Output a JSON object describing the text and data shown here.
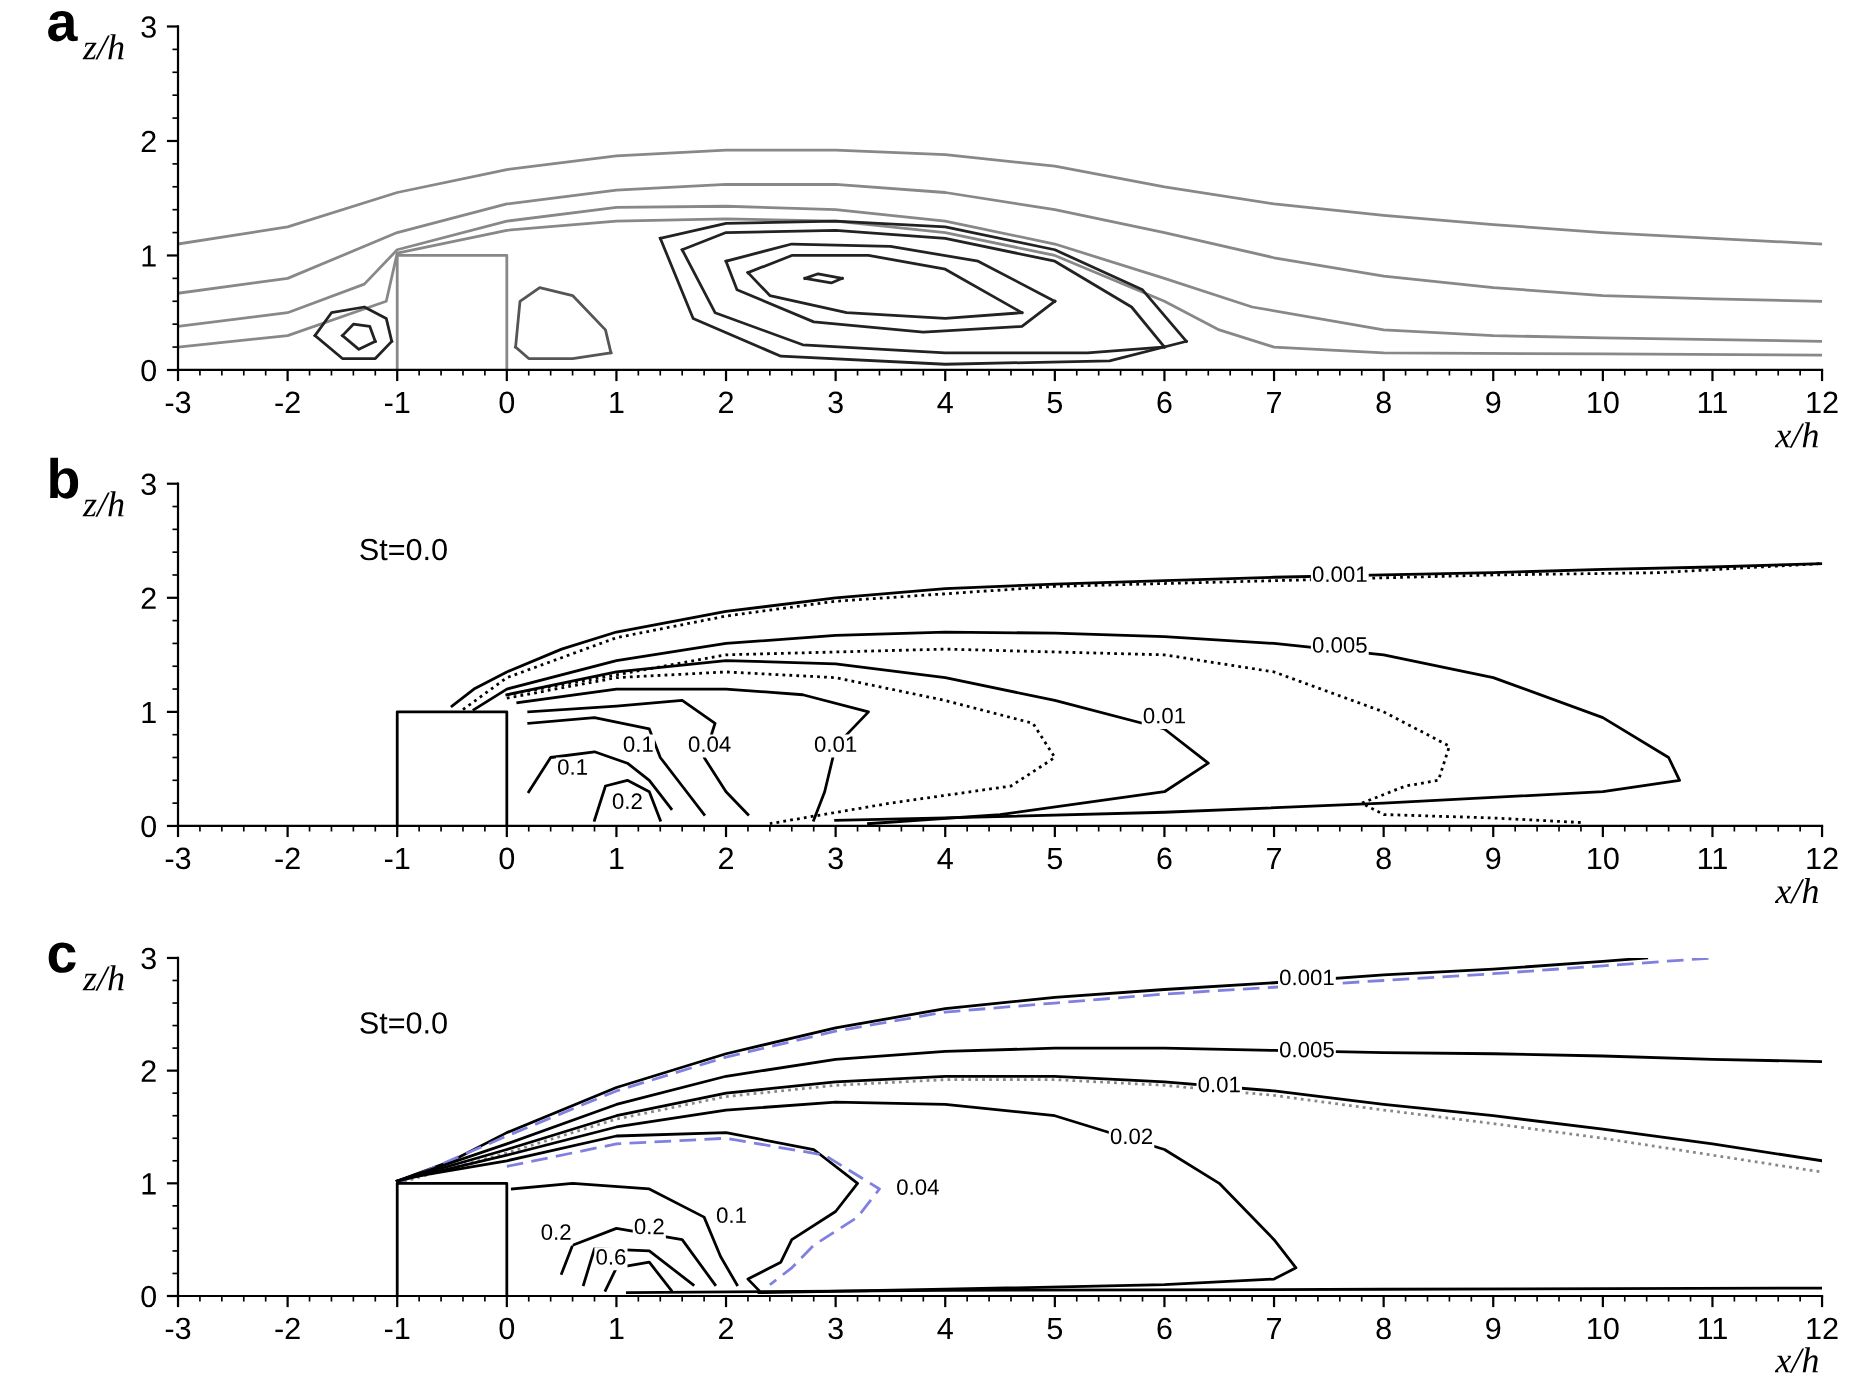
{
  "chart_data": [
    {
      "type": "line",
      "title": "a",
      "xlabel": "x/h",
      "ylabel": "z/h",
      "xlim": [
        -3,
        12
      ],
      "xticks": [
        -3,
        -2,
        -1,
        0,
        1,
        2,
        3,
        4,
        5,
        6,
        7,
        8,
        9,
        10,
        11,
        12
      ],
      "ylim": [
        0,
        3
      ],
      "yticks": [
        0,
        1,
        2,
        3
      ],
      "grid": false,
      "legend": false,
      "series": [
        {
          "color": "#888888",
          "line_style": "solid",
          "x": [
            -3,
            -2,
            -1,
            0,
            1,
            2,
            3,
            4,
            5,
            6,
            7,
            8,
            9,
            10,
            11,
            12
          ],
          "values": [
            1.1,
            1.25,
            1.55,
            1.75,
            1.87,
            1.92,
            1.92,
            1.88,
            1.78,
            1.6,
            1.45,
            1.35,
            1.27,
            1.2,
            1.15,
            1.1
          ]
        },
        {
          "color": "#888888",
          "line_style": "solid",
          "x": [
            -3,
            -2,
            -1,
            0,
            1,
            2,
            3,
            4,
            5,
            6,
            7,
            8,
            9,
            10,
            11,
            12
          ],
          "values": [
            0.67,
            0.8,
            1.2,
            1.45,
            1.57,
            1.62,
            1.62,
            1.55,
            1.4,
            1.2,
            0.98,
            0.82,
            0.72,
            0.65,
            0.62,
            0.6
          ]
        },
        {
          "color": "#888888",
          "line_style": "solid",
          "x": [
            -3,
            -2,
            -1.3,
            -1,
            0,
            1,
            2,
            3,
            4,
            5,
            6,
            6.8,
            8,
            9,
            10,
            12
          ],
          "values": [
            0.38,
            0.5,
            0.75,
            1.05,
            1.3,
            1.42,
            1.43,
            1.4,
            1.3,
            1.1,
            0.8,
            0.55,
            0.35,
            0.3,
            0.28,
            0.25
          ]
        },
        {
          "color": "#888888",
          "line_style": "solid",
          "x": [
            -3,
            -2,
            -1.1,
            -1,
            0,
            1,
            2,
            3,
            4,
            5,
            6,
            6.5,
            7,
            8,
            10,
            12
          ],
          "values": [
            0.2,
            0.3,
            0.6,
            1.02,
            1.22,
            1.3,
            1.32,
            1.3,
            1.2,
            1.0,
            0.6,
            0.35,
            0.2,
            0.15,
            0.14,
            0.13
          ]
        },
        {
          "color": "#222222",
          "line_style": "solid",
          "x": [
            1.4,
            2,
            3,
            4,
            5,
            5.8,
            6.2
          ],
          "values": [
            1.15,
            1.28,
            1.3,
            1.25,
            1.05,
            0.7,
            0.25
          ]
        },
        {
          "color": "#222222",
          "line_style": "solid",
          "x": [
            1.4,
            1.7,
            2.5,
            4,
            5.5,
            6.2
          ],
          "values": [
            1.15,
            0.45,
            0.12,
            0.05,
            0.08,
            0.25
          ]
        },
        {
          "color": "#222222",
          "line_style": "solid",
          "x": [
            1.6,
            2,
            3,
            4,
            5,
            5.7,
            6.0
          ],
          "values": [
            1.05,
            1.2,
            1.22,
            1.15,
            0.95,
            0.55,
            0.2
          ]
        },
        {
          "color": "#222222",
          "line_style": "solid",
          "x": [
            1.6,
            1.9,
            2.7,
            4,
            5.3,
            6.0
          ],
          "values": [
            1.05,
            0.5,
            0.22,
            0.15,
            0.15,
            0.2
          ]
        },
        {
          "color": "#222222",
          "line_style": "solid",
          "x": [
            2.0,
            2.6,
            3.5,
            4.3,
            5.0
          ],
          "values": [
            0.95,
            1.1,
            1.08,
            0.95,
            0.6
          ]
        },
        {
          "color": "#222222",
          "line_style": "solid",
          "x": [
            2.0,
            2.1,
            2.8,
            3.8,
            4.7,
            5.0
          ],
          "values": [
            0.95,
            0.7,
            0.42,
            0.33,
            0.38,
            0.6
          ]
        },
        {
          "color": "#222222",
          "line_style": "solid",
          "x": [
            2.2,
            2.6,
            3.3,
            4.0,
            4.7
          ],
          "values": [
            0.85,
            1.0,
            1.0,
            0.88,
            0.5
          ]
        },
        {
          "color": "#222222",
          "line_style": "solid",
          "x": [
            2.2,
            2.4,
            3.1,
            4.0,
            4.7
          ],
          "values": [
            0.85,
            0.65,
            0.5,
            0.45,
            0.5
          ]
        },
        {
          "color": "#222222",
          "line_style": "solid",
          "x": [
            2.72,
            2.84,
            3.06
          ],
          "values": [
            0.8,
            0.84,
            0.8
          ]
        },
        {
          "color": "#222222",
          "line_style": "solid",
          "x": [
            2.72,
            2.96,
            3.06
          ],
          "values": [
            0.8,
            0.76,
            0.8
          ]
        },
        {
          "color": "#222222",
          "line_style": "solid",
          "x": [
            -1.75,
            -1.6,
            -1.3,
            -1.1,
            -1.05
          ],
          "values": [
            0.3,
            0.5,
            0.55,
            0.45,
            0.25
          ]
        },
        {
          "color": "#222222",
          "line_style": "solid",
          "x": [
            -1.75,
            -1.5,
            -1.2,
            -1.05
          ],
          "values": [
            0.3,
            0.1,
            0.1,
            0.25
          ]
        },
        {
          "color": "#222222",
          "line_style": "solid",
          "x": [
            -1.5,
            -1.4,
            -1.25,
            -1.2
          ],
          "values": [
            0.3,
            0.4,
            0.38,
            0.25
          ]
        },
        {
          "color": "#222222",
          "line_style": "solid",
          "x": [
            -1.5,
            -1.35,
            -1.2
          ],
          "values": [
            0.3,
            0.18,
            0.25
          ]
        },
        {
          "color": "#555555",
          "line_style": "solid",
          "x": [
            0.08,
            0.12,
            0.3,
            0.6,
            0.9,
            0.95
          ],
          "values": [
            0.2,
            0.6,
            0.72,
            0.65,
            0.35,
            0.15
          ]
        },
        {
          "color": "#555555",
          "line_style": "solid",
          "x": [
            0.08,
            0.2,
            0.6,
            0.95
          ],
          "values": [
            0.2,
            0.1,
            0.1,
            0.15
          ]
        },
        {
          "color": "#888888",
          "line_style": "solid",
          "x": [
            -1,
            -1,
            0,
            0
          ],
          "values": [
            0,
            1,
            1,
            0
          ]
        }
      ]
    },
    {
      "type": "line",
      "title": "b",
      "xlabel": "x/h",
      "ylabel": "z/h",
      "xlim": [
        -3,
        12
      ],
      "xticks": [
        -3,
        -2,
        -1,
        0,
        1,
        2,
        3,
        4,
        5,
        6,
        7,
        8,
        9,
        10,
        11,
        12
      ],
      "ylim": [
        0,
        3
      ],
      "yticks": [
        0,
        1,
        2,
        3
      ],
      "grid": false,
      "legend": false,
      "annotations": [
        "St=0.0",
        {
          "text": "0.001",
          "x": 7.6,
          "y": 2.19
        },
        {
          "text": "0.005",
          "x": 7.6,
          "y": 1.57
        },
        {
          "text": "0.01",
          "x": 6.0,
          "y": 0.95
        },
        {
          "text": "0.01",
          "x": 3.0,
          "y": 0.7
        },
        {
          "text": "0.04",
          "x": 1.85,
          "y": 0.7
        },
        {
          "text": "0.1",
          "x": 1.2,
          "y": 0.7
        },
        {
          "text": "0.1",
          "x": 0.6,
          "y": 0.5
        },
        {
          "text": "0.2",
          "x": 1.1,
          "y": 0.2
        }
      ],
      "series": [
        {
          "color": "#000000",
          "line_style": "solid",
          "x": [
            -0.5,
            -0.3,
            0,
            0.5,
            1,
            2,
            3,
            4,
            5,
            6,
            7,
            8,
            9,
            10,
            11,
            12
          ],
          "values": [
            1.05,
            1.2,
            1.35,
            1.55,
            1.7,
            1.88,
            2.0,
            2.08,
            2.12,
            2.15,
            2.18,
            2.2,
            2.22,
            2.25,
            2.27,
            2.3
          ]
        },
        {
          "color": "#000000",
          "line_style": "dotted",
          "x": [
            -0.4,
            0,
            1,
            2,
            3,
            5,
            7,
            9,
            10.5,
            12
          ],
          "values": [
            1.02,
            1.3,
            1.65,
            1.84,
            1.97,
            2.1,
            2.15,
            2.2,
            2.22,
            2.3
          ]
        },
        {
          "color": "#000000",
          "line_style": "solid",
          "x": [
            -0.3,
            0,
            1,
            2,
            3,
            4,
            5,
            6,
            7,
            8,
            9,
            10,
            10.6,
            10.7,
            10,
            8,
            6,
            4,
            3
          ],
          "values": [
            1.02,
            1.2,
            1.45,
            1.6,
            1.67,
            1.7,
            1.69,
            1.66,
            1.6,
            1.5,
            1.3,
            0.95,
            0.6,
            0.4,
            0.3,
            0.2,
            0.12,
            0.07,
            0.05
          ]
        },
        {
          "color": "#000000",
          "line_style": "dotted",
          "x": [
            0,
            2,
            4,
            6,
            7,
            8,
            8.6,
            8.5,
            8.2,
            7.8,
            8,
            9,
            9.8
          ],
          "values": [
            1.15,
            1.5,
            1.55,
            1.5,
            1.35,
            1.0,
            0.7,
            0.4,
            0.35,
            0.2,
            0.1,
            0.07,
            0.03
          ]
        },
        {
          "color": "#000000",
          "line_style": "solid",
          "x": [
            0,
            1,
            2,
            3,
            4,
            5,
            6,
            6.4,
            6,
            4.5,
            3.3
          ],
          "values": [
            1.15,
            1.35,
            1.45,
            1.42,
            1.3,
            1.1,
            0.85,
            0.55,
            0.3,
            0.1,
            0.02
          ]
        },
        {
          "color": "#000000",
          "line_style": "dotted",
          "x": [
            0,
            1,
            2,
            3,
            4,
            4.8,
            5,
            4.6,
            3.5,
            2.4
          ],
          "values": [
            1.12,
            1.3,
            1.35,
            1.3,
            1.1,
            0.9,
            0.6,
            0.35,
            0.2,
            0.02
          ]
        },
        {
          "color": "#000000",
          "line_style": "solid",
          "x": [
            0.1,
            1,
            2,
            2.7,
            3.3,
            3.0,
            2.9,
            2.8
          ],
          "values": [
            1.08,
            1.2,
            1.2,
            1.15,
            1.0,
            0.7,
            0.3,
            0.05
          ]
        },
        {
          "color": "#000000",
          "line_style": "solid",
          "x": [
            0.2,
            1,
            1.6,
            1.9,
            1.8,
            2.0,
            2.2
          ],
          "values": [
            1.0,
            1.05,
            1.1,
            0.9,
            0.6,
            0.3,
            0.1
          ]
        },
        {
          "color": "#000000",
          "line_style": "solid",
          "x": [
            0.2,
            0.8,
            1.3,
            1.4,
            1.6,
            1.8
          ],
          "values": [
            0.9,
            0.95,
            0.85,
            0.6,
            0.35,
            0.1
          ]
        },
        {
          "color": "#000000",
          "line_style": "solid",
          "x": [
            0.2,
            0.4,
            0.8,
            1.1,
            1.3,
            1.5
          ],
          "values": [
            0.3,
            0.6,
            0.65,
            0.55,
            0.4,
            0.15
          ]
        },
        {
          "color": "#000000",
          "line_style": "solid",
          "x": [
            0.8,
            0.9,
            1.1,
            1.3,
            1.4
          ],
          "values": [
            0.05,
            0.35,
            0.4,
            0.3,
            0.05
          ]
        },
        {
          "color": "#000000",
          "line_style": "solid",
          "x": [
            -1,
            -1,
            0,
            0
          ],
          "values": [
            0,
            1,
            1,
            0
          ]
        }
      ]
    },
    {
      "type": "line",
      "title": "c",
      "xlabel": "x/h",
      "ylabel": "z/h",
      "xlim": [
        -3,
        12
      ],
      "xticks": [
        -3,
        -2,
        -1,
        0,
        1,
        2,
        3,
        4,
        5,
        6,
        7,
        8,
        9,
        10,
        11,
        12
      ],
      "ylim": [
        0,
        3
      ],
      "yticks": [
        0,
        1,
        2,
        3
      ],
      "grid": false,
      "legend": false,
      "annotations": [
        "St=0.0",
        {
          "text": "0.001",
          "x": 7.3,
          "y": 2.81
        },
        {
          "text": "0.005",
          "x": 7.3,
          "y": 2.17
        },
        {
          "text": "0.01",
          "x": 6.5,
          "y": 1.86
        },
        {
          "text": "0.02",
          "x": 5.7,
          "y": 1.4
        },
        {
          "text": "0.04",
          "x": 3.75,
          "y": 0.95
        },
        {
          "text": "0.1",
          "x": 2.05,
          "y": 0.7
        },
        {
          "text": "0.2",
          "x": 1.3,
          "y": 0.6
        },
        {
          "text": "0.2",
          "x": 0.45,
          "y": 0.55
        },
        {
          "text": "0.6",
          "x": 0.95,
          "y": 0.33
        }
      ],
      "series": [
        {
          "color": "#000000",
          "line_style": "solid",
          "x": [
            -1,
            -0.5,
            0,
            1,
            2,
            3,
            4,
            5,
            6,
            7,
            8,
            9,
            10,
            10.4
          ],
          "values": [
            1.02,
            1.2,
            1.45,
            1.85,
            2.15,
            2.38,
            2.55,
            2.65,
            2.72,
            2.78,
            2.85,
            2.9,
            2.97,
            3.0
          ]
        },
        {
          "color": "#8080e0",
          "line_style": "dashed",
          "x": [
            -1,
            0,
            1,
            2,
            3,
            4,
            5,
            6,
            7,
            8,
            9,
            10,
            11
          ],
          "values": [
            1.0,
            1.42,
            1.82,
            2.12,
            2.35,
            2.52,
            2.6,
            2.68,
            2.74,
            2.8,
            2.86,
            2.93,
            3.0
          ]
        },
        {
          "color": "#000000",
          "line_style": "solid",
          "x": [
            -1,
            0,
            1,
            2,
            3,
            4,
            5,
            6,
            7,
            8,
            9,
            10,
            11,
            12
          ],
          "values": [
            1.02,
            1.35,
            1.7,
            1.95,
            2.1,
            2.17,
            2.2,
            2.2,
            2.18,
            2.16,
            2.15,
            2.13,
            2.1,
            2.08
          ]
        },
        {
          "color": "#000000",
          "line_style": "solid",
          "x": [
            -1,
            0,
            1,
            2,
            3,
            4,
            5,
            6,
            7,
            8,
            9,
            10,
            11,
            12
          ],
          "values": [
            1.02,
            1.3,
            1.6,
            1.8,
            1.9,
            1.95,
            1.95,
            1.9,
            1.82,
            1.7,
            1.6,
            1.48,
            1.35,
            1.2
          ]
        },
        {
          "color": "#888888",
          "line_style": "dotted",
          "x": [
            -1,
            0,
            1,
            2,
            3,
            4,
            5,
            6,
            7,
            8,
            9,
            10,
            11,
            12
          ],
          "values": [
            1.0,
            1.27,
            1.57,
            1.77,
            1.87,
            1.92,
            1.92,
            1.87,
            1.78,
            1.65,
            1.53,
            1.4,
            1.25,
            1.1
          ]
        },
        {
          "color": "#000000",
          "line_style": "solid",
          "x": [
            -1,
            0,
            1,
            2,
            3,
            4,
            5,
            6,
            6.5,
            7,
            7.2,
            7,
            6,
            4,
            2.3
          ],
          "values": [
            1.02,
            1.25,
            1.5,
            1.65,
            1.72,
            1.7,
            1.6,
            1.3,
            1.0,
            0.5,
            0.25,
            0.15,
            0.1,
            0.06,
            0.03
          ]
        },
        {
          "color": "#000000",
          "line_style": "solid",
          "x": [
            -0.9,
            0,
            1,
            2,
            2.8,
            3.2,
            3.0,
            2.6,
            2.5,
            2.2,
            2.3
          ],
          "values": [
            1.05,
            1.2,
            1.42,
            1.45,
            1.3,
            1.0,
            0.75,
            0.5,
            0.3,
            0.15,
            0.05
          ]
        },
        {
          "color": "#8080e0",
          "line_style": "dashed",
          "x": [
            0,
            1,
            2,
            2.9,
            3.4,
            3.2,
            2.8,
            2.6,
            2.4
          ],
          "values": [
            1.15,
            1.35,
            1.4,
            1.25,
            0.95,
            0.7,
            0.45,
            0.25,
            0.1
          ]
        },
        {
          "color": "#000000",
          "line_style": "solid",
          "x": [
            0.05,
            0.6,
            1.3,
            1.8,
            1.95,
            2.1
          ],
          "values": [
            0.95,
            1.0,
            0.95,
            0.7,
            0.35,
            0.1
          ]
        },
        {
          "color": "#000000",
          "line_style": "solid",
          "x": [
            0.5,
            0.6,
            1.0,
            1.6,
            1.9
          ],
          "values": [
            0.2,
            0.45,
            0.6,
            0.5,
            0.1
          ]
        },
        {
          "color": "#000000",
          "line_style": "solid",
          "x": [
            0.7,
            0.8,
            1.3,
            1.7
          ],
          "values": [
            0.1,
            0.42,
            0.4,
            0.1
          ]
        },
        {
          "color": "#000000",
          "line_style": "solid",
          "x": [
            0.9,
            1.0,
            1.3,
            1.5
          ],
          "values": [
            0.05,
            0.25,
            0.3,
            0.05
          ]
        },
        {
          "color": "#000000",
          "line_style": "solid",
          "x": [
            1.1,
            4,
            8,
            12
          ],
          "values": [
            0.03,
            0.05,
            0.06,
            0.07
          ]
        },
        {
          "color": "#000000",
          "line_style": "solid",
          "x": [
            -1,
            -1,
            0,
            0
          ],
          "values": [
            0,
            1,
            1,
            0
          ]
        }
      ]
    }
  ]
}
